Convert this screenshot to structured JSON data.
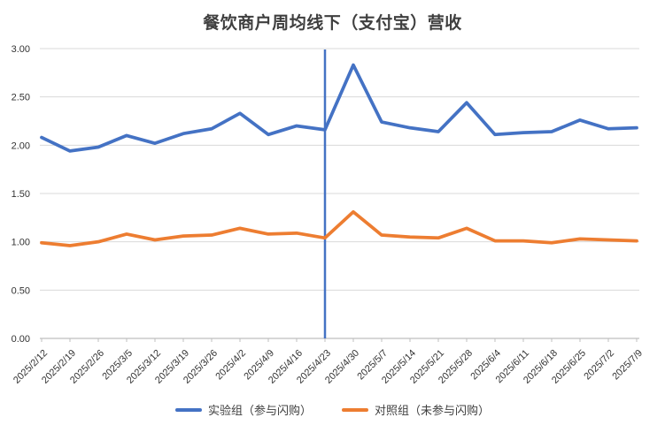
{
  "title": "餐饮商户周均线下（支付宝）营收",
  "colors": {
    "experimental_line": "#4472C4",
    "control_line": "#ED7D31",
    "marker_vline": "#4472C4",
    "gridline": "#D9D9D9",
    "axis_line": "#BFBFBF",
    "tick_label": "#333333",
    "title_text": "#3F3F3F"
  },
  "legend": {
    "items": [
      {
        "label": "实验组（参与闪购）",
        "color": "#4472C4"
      },
      {
        "label": "对照组（未参与闪购）",
        "color": "#ED7D31"
      }
    ]
  },
  "chart_data": {
    "type": "line",
    "title": "餐饮商户周均线下（支付宝）营收",
    "x": [
      "2025/2/12",
      "2025/2/19",
      "2025/2/26",
      "2025/3/5",
      "2025/3/12",
      "2025/3/19",
      "2025/3/26",
      "2025/4/2",
      "2025/4/9",
      "2025/4/16",
      "2025/4/23",
      "2025/4/30",
      "2025/5/7",
      "2025/5/14",
      "2025/5/21",
      "2025/5/28",
      "2025/6/4",
      "2025/6/11",
      "2025/6/18",
      "2025/6/25",
      "2025/7/2",
      "2025/7/9"
    ],
    "series": [
      {
        "name": "实验组（参与闪购）",
        "color": "#4472C4",
        "values": [
          2.08,
          1.94,
          1.98,
          2.1,
          2.02,
          2.12,
          2.17,
          2.33,
          2.11,
          2.2,
          2.16,
          2.83,
          2.24,
          2.18,
          2.14,
          2.44,
          2.11,
          2.13,
          2.14,
          2.26,
          2.17,
          2.18
        ]
      },
      {
        "name": "对照组（未参与闪购）",
        "color": "#ED7D31",
        "values": [
          0.99,
          0.96,
          1.0,
          1.08,
          1.02,
          1.06,
          1.07,
          1.14,
          1.08,
          1.09,
          1.04,
          1.31,
          1.07,
          1.05,
          1.04,
          1.14,
          1.01,
          1.01,
          0.99,
          1.03,
          1.02,
          1.01
        ]
      }
    ],
    "ylim": [
      0,
      3
    ],
    "ytick_labels": [
      "0.00",
      "0.50",
      "1.00",
      "1.50",
      "2.00",
      "2.50",
      "3.00"
    ],
    "grid": true,
    "legend_position": "bottom",
    "annotation": {
      "type": "vline",
      "at": "2025/4/23",
      "index": 10,
      "color": "#4472C4"
    }
  }
}
